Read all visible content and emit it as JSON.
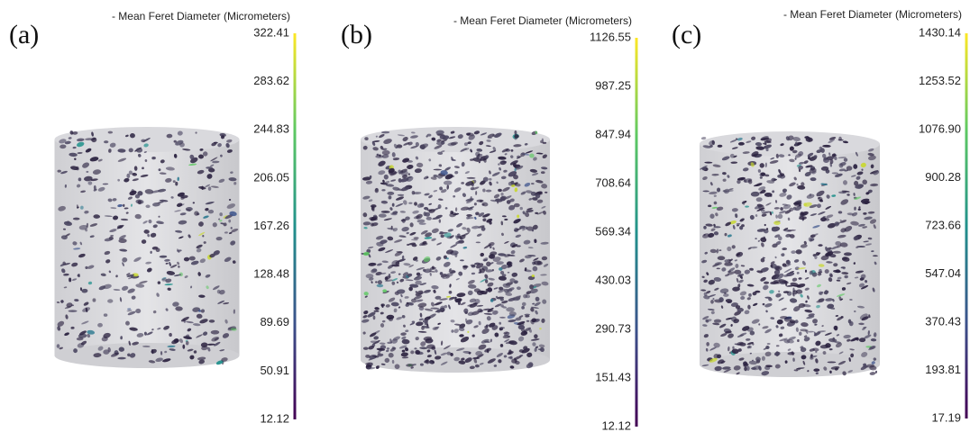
{
  "panels": [
    {
      "label": "(a)",
      "colorbar_title": "- Mean Feret Diameter (Micrometers)",
      "ticks": [
        "322.41",
        "283.62",
        "244.83",
        "206.05",
        "167.26",
        "128.48",
        "89.69",
        "50.91",
        "12.12"
      ]
    },
    {
      "label": "(b)",
      "colorbar_title": "- Mean Feret Diameter (Micrometers)",
      "ticks": [
        "1126.55",
        "987.25",
        "847.94",
        "708.64",
        "569.34",
        "430.03",
        "290.73",
        "151.43",
        "12.12"
      ]
    },
    {
      "label": "(c)",
      "colorbar_title": "- Mean Feret Diameter (Micrometers)",
      "ticks": [
        "1430.14",
        "1253.52",
        "1076.90",
        "900.28",
        "723.66",
        "547.04",
        "370.43",
        "193.81",
        "17.19"
      ]
    }
  ]
}
